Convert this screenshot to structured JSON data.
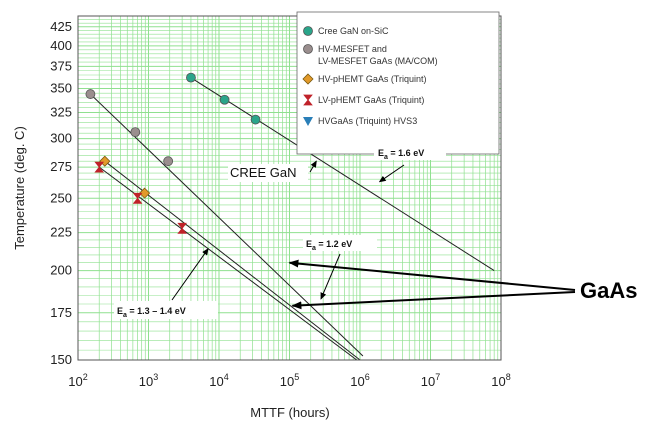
{
  "chart_data": {
    "type": "line",
    "xlabel": "MTTF (hours)",
    "ylabel": "Temperature (deg. C)",
    "xscale": "log",
    "yscale": "reciprocal",
    "xlim": [
      100,
      100000000
    ],
    "ylim": [
      150,
      440
    ],
    "grid": "on",
    "legend_placement": "top-right",
    "xticks": [
      {
        "value": 100,
        "base": "10",
        "exp": "2"
      },
      {
        "value": 1000,
        "base": "10",
        "exp": "3"
      },
      {
        "value": 10000,
        "base": "10",
        "exp": "4"
      },
      {
        "value": 100000,
        "base": "10",
        "exp": "5"
      },
      {
        "value": 1000000,
        "base": "10",
        "exp": "6"
      },
      {
        "value": 10000000,
        "base": "10",
        "exp": "7"
      },
      {
        "value": 100000000,
        "base": "10",
        "exp": "8"
      }
    ],
    "yticks": [
      150,
      175,
      200,
      225,
      250,
      275,
      300,
      325,
      350,
      375,
      400,
      425
    ],
    "series": [
      {
        "name": "Cree GaN on-SiC",
        "marker": "circle",
        "color": "#2aa58a",
        "points": [
          [
            4000,
            362
          ],
          [
            12000,
            338
          ],
          [
            33000,
            318
          ]
        ]
      },
      {
        "name": "HV-MESFET and LV-MESFET GaAs (MA/COM)",
        "marker": "circle",
        "color": "#9a8e8e",
        "points": [
          [
            150,
            344
          ],
          [
            650,
            306
          ],
          [
            1900,
            280
          ]
        ]
      },
      {
        "name": "HV-pHEMT GaAs (Triquint)",
        "marker": "diamond",
        "color": "#e29a2a",
        "points": [
          [
            240,
            280
          ],
          [
            880,
            254
          ]
        ]
      },
      {
        "name": "LV-pHEMT GaAs (Triquint)",
        "marker": "hourglass",
        "color": "#c0222a",
        "points": [
          [
            200,
            275
          ],
          [
            700,
            250
          ],
          [
            3000,
            228
          ]
        ]
      },
      {
        "name": "HVGaAs (Triquint) HVS3",
        "marker": "triangle-down",
        "color": "#2a7fb8",
        "points": []
      }
    ],
    "fit_lines": [
      {
        "series": "Cree GaN on-SiC",
        "from": [
          4000,
          362
        ],
        "to": [
          80000000,
          200
        ]
      },
      {
        "series": "HV-MESFET and LV-MESFET GaAs (MA/COM)",
        "from": [
          150,
          344
        ],
        "to": [
          1100000,
          152
        ]
      },
      {
        "series": "HV-pHEMT GaAs (Triquint)",
        "from": [
          240,
          280
        ],
        "to": [
          1000000,
          150
        ]
      },
      {
        "series": "LV-pHEMT GaAs (Triquint)",
        "from": [
          200,
          275
        ],
        "to": [
          900000,
          150
        ]
      }
    ],
    "annotations": {
      "ea_16": {
        "main": "E",
        "sub": "a",
        "rest": " = 1.6 eV",
        "arrow_to": [
          1900000,
          263
        ]
      },
      "ea_12": {
        "main": "E",
        "sub": "a",
        "rest": " = 1.2 eV",
        "arrow_to": [
          280000,
          183
        ]
      },
      "ea_13": {
        "main": "E",
        "sub": "a",
        "rest": " = 1.3 – 1.4 eV",
        "arrow_to": [
          7000,
          214
        ]
      },
      "cree_gan": {
        "text": "CREE GaN",
        "arrow_to": [
          240000,
          280
        ]
      },
      "gaas": {
        "text": "GaAs",
        "arrow_to": [
          [
            100000,
            205
          ],
          [
            110000,
            179
          ]
        ]
      }
    }
  }
}
